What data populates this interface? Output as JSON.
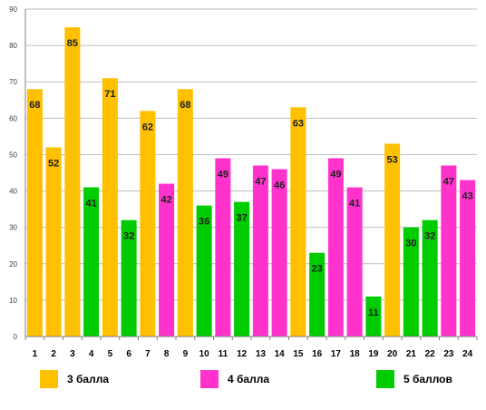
{
  "chart_data": {
    "type": "bar",
    "categories": [
      "1",
      "2",
      "3",
      "4",
      "5",
      "6",
      "7",
      "8",
      "9",
      "10",
      "11",
      "12",
      "13",
      "14",
      "15",
      "16",
      "17",
      "18",
      "19",
      "20",
      "21",
      "22",
      "23",
      "24"
    ],
    "values": [
      68,
      52,
      85,
      41,
      71,
      32,
      62,
      42,
      68,
      36,
      49,
      37,
      47,
      46,
      63,
      23,
      49,
      41,
      11,
      53,
      30,
      32,
      47,
      43
    ],
    "groups": [
      "3 балла",
      "3 балла",
      "3 балла",
      "5 баллов",
      "3 балла",
      "5 баллов",
      "3 балла",
      "4 балла",
      "3 балла",
      "5 баллов",
      "4 балла",
      "5 баллов",
      "4 балла",
      "4 балла",
      "3 балла",
      "5 баллов",
      "4 балла",
      "4 балла",
      "5 баллов",
      "3 балла",
      "5 баллов",
      "5 баллов",
      "4 балла",
      "4 балла"
    ],
    "ylim": [
      0,
      90
    ],
    "yticks": [
      0,
      10,
      20,
      30,
      40,
      50,
      60,
      70,
      80,
      90
    ],
    "grid": true,
    "legend_position": "bottom",
    "legend": [
      {
        "name": "3 балла",
        "color": "#FFC000"
      },
      {
        "name": "4 балла",
        "color": "#FF33CC"
      },
      {
        "name": "5 баллов",
        "color": "#00CC00"
      }
    ],
    "title": "",
    "xlabel": "",
    "ylabel": ""
  }
}
